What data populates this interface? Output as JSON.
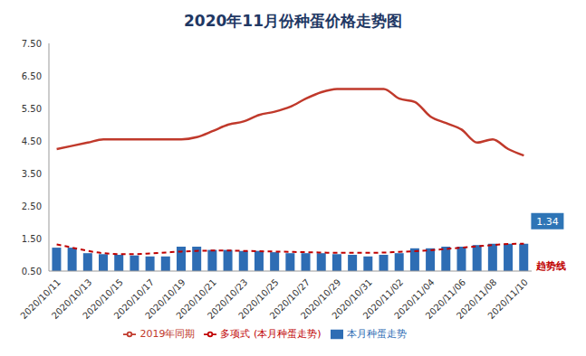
{
  "chart_data": {
    "type": "bar",
    "title": "2020年11月份种蛋价格走势图",
    "categories": [
      "2020/10/11",
      null,
      "2020/10/13",
      null,
      "2020/10/15",
      null,
      "2020/10/17",
      null,
      "2020/10/19",
      null,
      "2020/10/21",
      null,
      "2020/10/23",
      null,
      "2020/10/25",
      null,
      "2020/10/27",
      null,
      "2020/10/29",
      null,
      "2020/10/31",
      null,
      "2020/11/02",
      null,
      "2020/11/04",
      null,
      "2020/11/06",
      null,
      "2020/11/08",
      null,
      "2020/11/10"
    ],
    "series": [
      {
        "name": "本月种蛋走势",
        "type": "bar",
        "color": "#2e6db4",
        "values": [
          1.22,
          1.22,
          1.05,
          1.02,
          1.0,
          0.98,
          0.95,
          0.95,
          1.25,
          1.25,
          1.15,
          1.15,
          1.12,
          1.12,
          1.08,
          1.05,
          1.05,
          1.05,
          1.02,
          1.0,
          0.95,
          1.0,
          1.05,
          1.2,
          1.2,
          1.25,
          1.25,
          1.3,
          1.34,
          1.34,
          1.34
        ]
      },
      {
        "name": "2019年同期",
        "type": "line",
        "color": "#c0392b",
        "line_style": "solid",
        "values": [
          4.25,
          4.35,
          4.45,
          4.55,
          4.55,
          4.55,
          4.55,
          4.55,
          4.55,
          4.62,
          4.8,
          5.0,
          5.1,
          5.3,
          5.4,
          5.55,
          5.8,
          6.0,
          6.1,
          6.1,
          6.1,
          6.1,
          5.8,
          5.7,
          5.25,
          5.05,
          4.85,
          4.45,
          4.55,
          4.25,
          4.05
        ]
      },
      {
        "name": "多项式 (本月种蛋走势)",
        "type": "line",
        "color": "#c00000",
        "line_style": "dashed",
        "values": [
          1.32,
          1.22,
          1.12,
          1.05,
          1.02,
          1.02,
          1.04,
          1.07,
          1.1,
          1.12,
          1.13,
          1.13,
          1.12,
          1.11,
          1.1,
          1.09,
          1.08,
          1.07,
          1.06,
          1.06,
          1.06,
          1.07,
          1.09,
          1.11,
          1.14,
          1.18,
          1.22,
          1.26,
          1.3,
          1.33,
          1.34
        ]
      }
    ],
    "ylim": [
      0.5,
      7.5
    ],
    "yticks": [
      {
        "value": 0.5,
        "label": "0.50"
      },
      {
        "value": 1.5,
        "label": "1.50"
      },
      {
        "value": 2.5,
        "label": "2.50"
      },
      {
        "value": 3.5,
        "label": "3.50"
      },
      {
        "value": 4.5,
        "label": "4.50"
      },
      {
        "value": 5.5,
        "label": "5.50"
      },
      {
        "value": 6.5,
        "label": "6.50"
      },
      {
        "value": 7.5,
        "label": "7.50"
      }
    ],
    "grid": false,
    "legend": "bottom",
    "annotations": [
      {
        "text": "1.34",
        "value": 1.34
      },
      {
        "text": "趋势线"
      }
    ]
  }
}
